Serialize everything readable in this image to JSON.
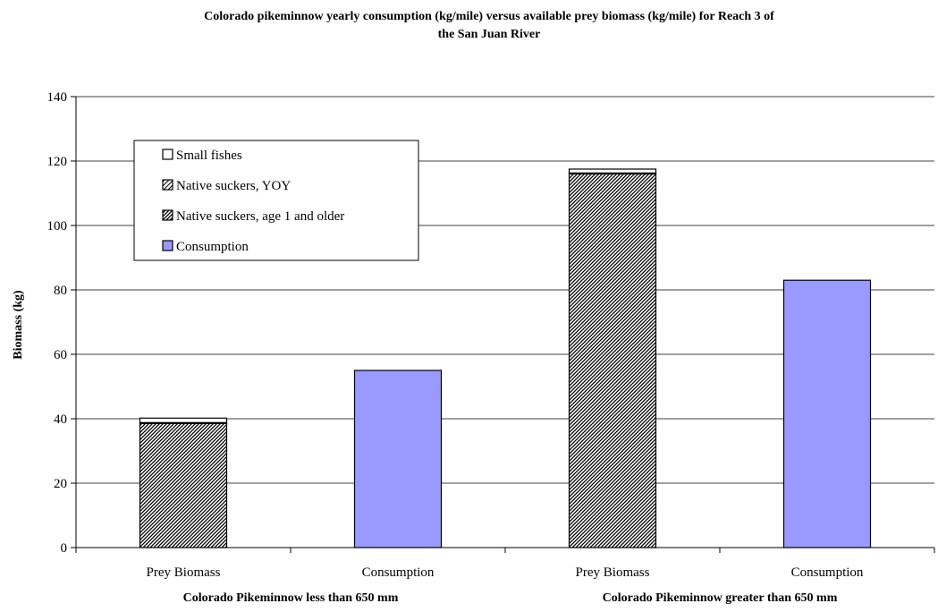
{
  "chart_data": {
    "type": "bar",
    "stacked": true,
    "title_lines": [
      "Colorado pikeminnow yearly consumption (kg/mile) versus available prey biomass (kg/mile) for Reach 3 of",
      "the San Juan River"
    ],
    "ylabel": "Biomass (kg)",
    "ylim": [
      0,
      140
    ],
    "yticks": [
      0,
      20,
      40,
      60,
      80,
      100,
      120,
      140
    ],
    "grid": true,
    "legend_position": "top-left",
    "categories": [
      "Prey Biomass",
      "Consumption",
      "Prey Biomass",
      "Consumption"
    ],
    "groups": [
      {
        "label": "Colorado Pikeminnow less than 650 mm",
        "categories": [
          0,
          1
        ]
      },
      {
        "label": "Colorado Pikeminnow greater than 650 mm",
        "categories": [
          2,
          3
        ]
      }
    ],
    "series": [
      {
        "name": "Native suckers, age 1 and older",
        "values": [
          38.5,
          0,
          116,
          0
        ],
        "fill": "hatch-dense"
      },
      {
        "name": "Native suckers, YOY",
        "values": [
          0.3,
          0,
          0.3,
          0
        ],
        "fill": "hatch-light"
      },
      {
        "name": "Small fishes",
        "values": [
          1.4,
          0,
          1.2,
          0
        ],
        "fill": "#ffffff"
      },
      {
        "name": "Consumption",
        "values": [
          0,
          55,
          0,
          83
        ],
        "fill": "#9999ff"
      }
    ],
    "legend_order": [
      "Small fishes",
      "Native suckers, YOY",
      "Native suckers, age 1 and older",
      "Consumption"
    ]
  }
}
